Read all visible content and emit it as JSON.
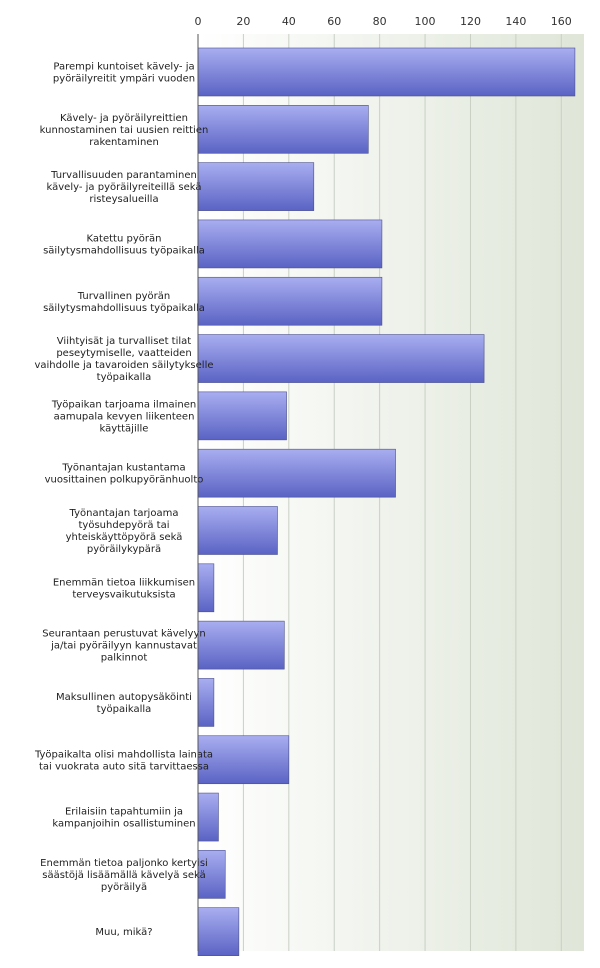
{
  "chart_data": {
    "type": "bar",
    "orientation": "horizontal",
    "categories": [
      [
        "Parempi kuntoiset kävely- ja",
        "pyöräilyreitit ympäri vuoden"
      ],
      [
        "Kävely- ja pyöräilyreittien",
        "kunnostaminen tai uusien reittien",
        "rakentaminen"
      ],
      [
        "Turvallisuuden parantaminen",
        "kävely- ja pyöräilyreiteillä sekä",
        "risteysalueilla"
      ],
      [
        "Katettu pyörän",
        "säilytysmahdollisuus työpaikalla"
      ],
      [
        "Turvallinen pyörän",
        "säilytysmahdollisuus työpaikalla"
      ],
      [
        "Viihtyisät ja turvalliset tilat",
        "peseytymiselle, vaatteiden",
        "vaihdolle ja tavaroiden säilytykselle",
        "työpaikalla"
      ],
      [
        "Työpaikan tarjoama ilmainen",
        "aamupala kevyen liikenteen",
        "käyttäjille"
      ],
      [
        "Työnantajan kustantama",
        "vuosittainen polkupyöränhuolto"
      ],
      [
        "Työnantajan tarjoama",
        "työsuhdepyörä tai",
        "yhteiskäyttöpyörä sekä",
        "pyöräilykypärä"
      ],
      [
        "Enemmän tietoa liikkumisen",
        "terveysvaikutuksista"
      ],
      [
        "Seurantaan perustuvat kävelyyn",
        "ja/tai pyöräilyyn kannustavat",
        "palkinnot"
      ],
      [
        "Maksullinen autopysäköinti",
        "työpaikalla"
      ],
      [
        "Työpaikalta olisi mahdollista lainata",
        "tai vuokrata auto sitä tarvittaessa"
      ],
      [
        "Erilaisiin tapahtumiin ja",
        "kampanjoihin osallistuminen"
      ],
      [
        "Enemmän tietoa paljonko kertyisi",
        "säästöjä lisäämällä kävelyä sekä",
        "pyöräilyä"
      ],
      [
        "Muu, mikä?"
      ]
    ],
    "values": [
      166,
      75,
      51,
      81,
      81,
      126,
      39,
      87,
      35,
      7,
      38,
      7,
      40,
      9,
      12,
      18
    ],
    "xlim": [
      0,
      170
    ],
    "xticks": [
      0,
      20,
      40,
      60,
      80,
      100,
      120,
      140,
      160
    ],
    "axis_position": "top",
    "grid": true,
    "colors": {
      "bar_light": "#a9aef0",
      "bar_dark": "#5a63c4",
      "bar_border": "#4a4f8e",
      "plot_bg_left": "#ffffff",
      "plot_bg_right": "#dfe6d8",
      "grid": "#c9d0c3",
      "axis": "#555555"
    }
  }
}
